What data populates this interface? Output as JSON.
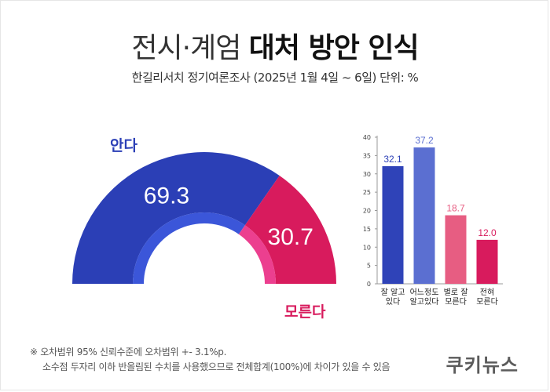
{
  "header": {
    "title_light": "전시·계엄",
    "title_bold": "대처 방안 인식",
    "subtitle": "한길리서치 정기여론조사 (2025년 1월 4일 ~ 6일) 단위: %"
  },
  "colors": {
    "know": "#2b3fb6",
    "dontknow": "#d81b5d",
    "inner_know": "#3b56d9",
    "inner_dontknow": "#ec3f8f"
  },
  "chart_data": [
    {
      "type": "pie",
      "variant": "half-donut",
      "slices": [
        {
          "label": "안다",
          "value": 69.3,
          "value_label": "69.3"
        },
        {
          "label": "모른다",
          "value": 30.7,
          "value_label": "30.7"
        }
      ]
    },
    {
      "type": "bar",
      "categories": [
        {
          "label": [
            "잘 알고",
            "있다"
          ],
          "value": 32.1,
          "value_label": "32.1",
          "color": "#2f43b8",
          "label_color": "#2f43b8"
        },
        {
          "label": [
            "어느정도",
            "알고있다"
          ],
          "value": 37.2,
          "value_label": "37.2",
          "color": "#5b6fd1",
          "label_color": "#5b6fd1"
        },
        {
          "label": [
            "별로 잘",
            "모른다"
          ],
          "value": 18.7,
          "value_label": "18.7",
          "color": "#e75d82",
          "label_color": "#e75d82"
        },
        {
          "label": [
            "전혀",
            "모른다"
          ],
          "value": 12.0,
          "value_label": "12.0",
          "color": "#d81b5d",
          "label_color": "#d81b5d"
        }
      ],
      "ylim": [
        0,
        40
      ],
      "yticks": [
        "0",
        "5",
        "10",
        "15",
        "20",
        "25",
        "30",
        "35",
        "40"
      ],
      "grid": false
    }
  ],
  "footnote": {
    "line1": "※ 오차범위 95% 신뢰수준에 오차범위 +- 3.1%p.",
    "line2": "소수점 두자리 이하 반올림된 수치를 사용했으므로 전체합계(100%)에 차이가 있을 수 있음"
  },
  "brand": "쿠키뉴스"
}
